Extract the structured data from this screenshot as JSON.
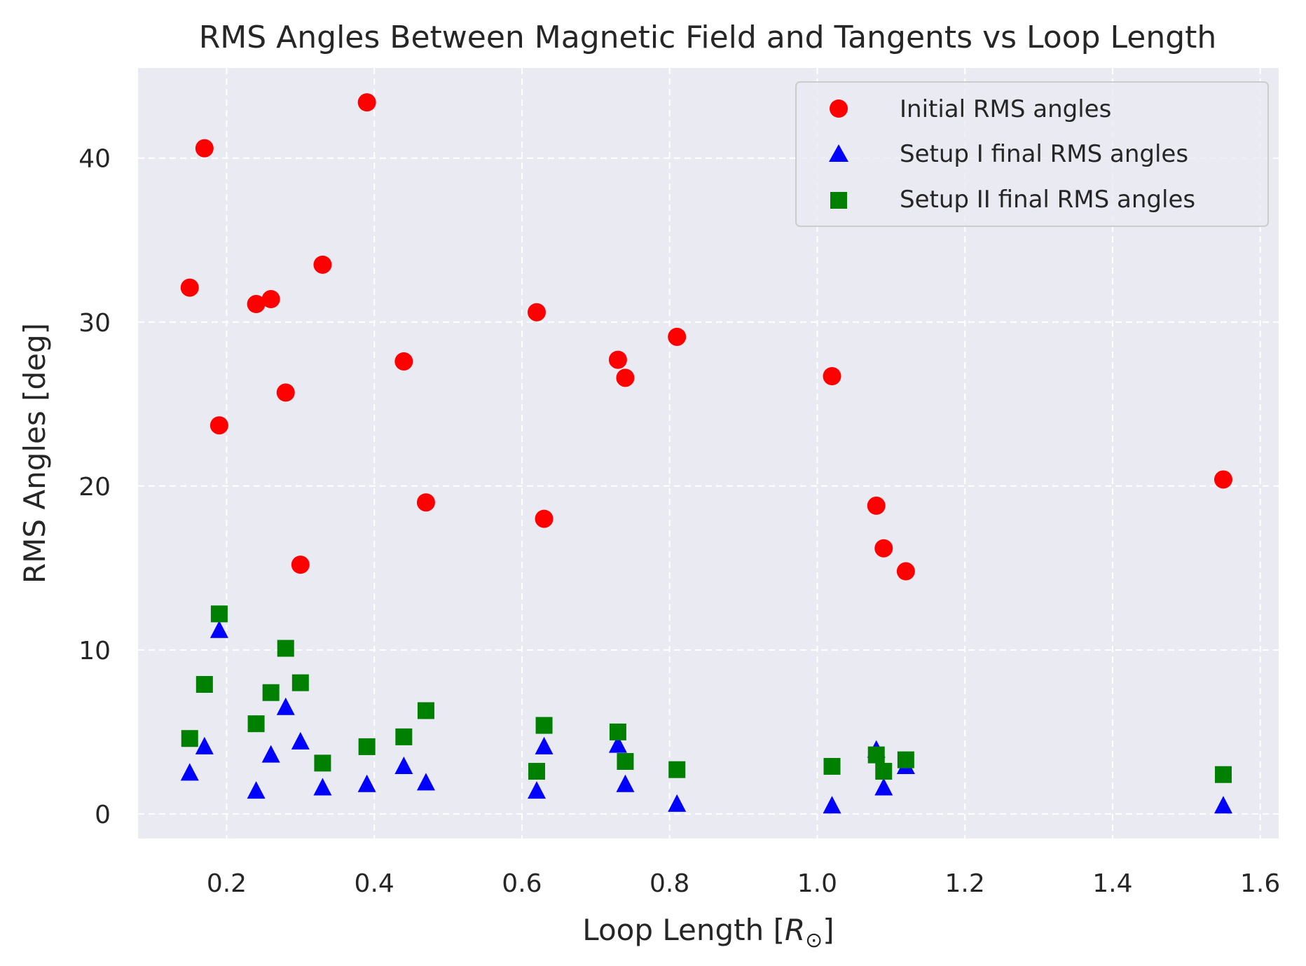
{
  "chart_data": {
    "type": "scatter",
    "title": "RMS Angles Between Magnetic Field and Tangents vs Loop Length",
    "xlabel_prefix": "Loop Length [",
    "xlabel_symbol": "R",
    "xlabel_subscript": "⊙",
    "xlabel_suffix": "]",
    "ylabel": "RMS Angles [deg]",
    "xlim": [
      0.08,
      1.625
    ],
    "ylim": [
      -1.5,
      45.5
    ],
    "xticks": [
      0.2,
      0.4,
      0.6,
      0.8,
      1.0,
      1.2,
      1.4,
      1.6
    ],
    "xtick_labels": [
      "0.2",
      "0.4",
      "0.6",
      "0.8",
      "1.0",
      "1.2",
      "1.4",
      "1.6"
    ],
    "yticks": [
      0,
      10,
      20,
      30,
      40
    ],
    "ytick_labels": [
      "0",
      "10",
      "20",
      "30",
      "40"
    ],
    "grid": true,
    "legend_position": "top-right",
    "background": "#eaeaf2",
    "series": [
      {
        "name": "Initial RMS angles",
        "marker": "circle",
        "color": "#ff0000",
        "x": [
          0.15,
          0.17,
          0.19,
          0.24,
          0.26,
          0.28,
          0.3,
          0.33,
          0.39,
          0.44,
          0.47,
          0.62,
          0.63,
          0.73,
          0.74,
          0.81,
          1.02,
          1.08,
          1.09,
          1.12,
          1.55
        ],
        "y": [
          32.1,
          40.6,
          23.7,
          31.1,
          31.4,
          25.7,
          15.2,
          33.5,
          43.4,
          27.6,
          19.0,
          30.6,
          18.0,
          27.7,
          26.6,
          29.1,
          26.7,
          18.8,
          16.2,
          14.8,
          20.4
        ]
      },
      {
        "name": "Setup I final RMS angles",
        "marker": "triangle",
        "color": "#0000ff",
        "x": [
          0.15,
          0.17,
          0.19,
          0.24,
          0.26,
          0.28,
          0.3,
          0.33,
          0.39,
          0.44,
          0.47,
          0.62,
          0.63,
          0.73,
          0.74,
          0.81,
          1.02,
          1.08,
          1.09,
          1.12,
          1.55
        ],
        "y": [
          2.5,
          4.1,
          11.2,
          1.4,
          3.6,
          6.5,
          4.4,
          1.6,
          1.8,
          2.9,
          1.9,
          1.4,
          4.1,
          4.2,
          1.8,
          0.6,
          0.5,
          3.9,
          1.6,
          2.9,
          0.5
        ]
      },
      {
        "name": "Setup II final RMS angles",
        "marker": "square",
        "color": "#008000",
        "x": [
          0.15,
          0.17,
          0.19,
          0.24,
          0.26,
          0.28,
          0.3,
          0.33,
          0.39,
          0.44,
          0.47,
          0.62,
          0.63,
          0.73,
          0.74,
          0.81,
          1.02,
          1.08,
          1.09,
          1.12,
          1.55
        ],
        "y": [
          4.6,
          7.9,
          12.2,
          5.5,
          7.4,
          10.1,
          8.0,
          3.1,
          4.1,
          4.7,
          6.3,
          2.6,
          5.4,
          5.0,
          3.2,
          2.7,
          2.9,
          3.6,
          2.6,
          3.3,
          2.4
        ]
      }
    ]
  }
}
